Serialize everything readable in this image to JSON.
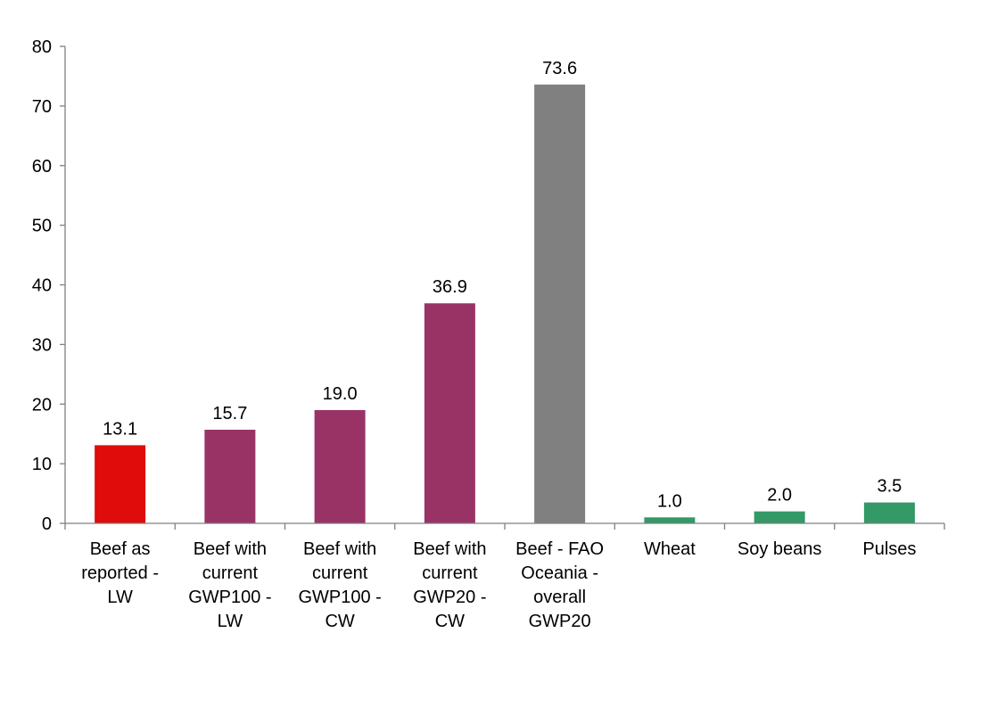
{
  "chart_data": {
    "type": "bar",
    "title": "",
    "xlabel": "",
    "ylabel": "",
    "ylim": [
      0,
      80
    ],
    "yticks": [
      0,
      10,
      20,
      30,
      40,
      50,
      60,
      70,
      80
    ],
    "grid": false,
    "legend": "none",
    "categories": [
      [
        "Beef as",
        "reported -",
        "LW"
      ],
      [
        "Beef with",
        "current",
        "GWP100 -",
        "LW"
      ],
      [
        "Beef with",
        "current",
        "GWP100 -",
        "CW"
      ],
      [
        "Beef with",
        "current",
        "GWP20 -",
        "CW"
      ],
      [
        "Beef - FAO",
        "Oceania -",
        "overall",
        "GWP20"
      ],
      [
        "Wheat"
      ],
      [
        "Soy beans"
      ],
      [
        "Pulses"
      ]
    ],
    "values": [
      13.1,
      15.7,
      19.0,
      36.9,
      73.6,
      1.0,
      2.0,
      3.5
    ],
    "value_labels": [
      "13.1",
      "15.7",
      "19.0",
      "36.9",
      "73.6",
      "1.0",
      "2.0",
      "3.5"
    ],
    "colors": [
      "#e00b0b",
      "#993366",
      "#993366",
      "#993366",
      "#808080",
      "#339966",
      "#339966",
      "#339966"
    ]
  }
}
